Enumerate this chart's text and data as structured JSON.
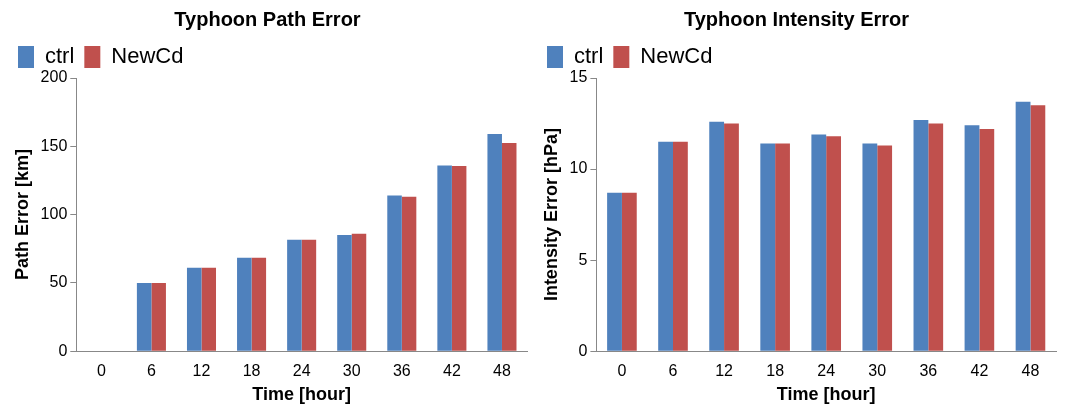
{
  "chart_data": [
    {
      "type": "bar",
      "title": "Typhoon Path Error",
      "xlabel": "Time [hour]",
      "ylabel": "Path Error [km]",
      "categories": [
        "0",
        "6",
        "12",
        "18",
        "24",
        "30",
        "36",
        "42",
        "48"
      ],
      "series": [
        {
          "name": "ctrl",
          "color": "#4f81bd",
          "values": [
            0,
            50,
            61,
            68.5,
            81.5,
            85,
            114,
            136,
            159
          ]
        },
        {
          "name": "NewCd",
          "color": "#c0504d",
          "values": [
            0,
            50,
            61,
            68.5,
            81.5,
            86,
            113,
            135.5,
            152.5
          ]
        }
      ],
      "ylim": [
        0,
        200
      ],
      "yticks": [
        0,
        50,
        100,
        150,
        200
      ],
      "legend": "top left"
    },
    {
      "type": "bar",
      "title": "Typhoon Intensity Error",
      "xlabel": "Time [hour]",
      "ylabel": "Intensity Error [hPa]",
      "categories": [
        "0",
        "6",
        "12",
        "18",
        "24",
        "30",
        "36",
        "42",
        "48"
      ],
      "series": [
        {
          "name": "ctrl",
          "color": "#4f81bd",
          "values": [
            8.7,
            11.5,
            12.6,
            11.4,
            11.9,
            11.4,
            12.7,
            12.4,
            13.7
          ]
        },
        {
          "name": "NewCd",
          "color": "#c0504d",
          "values": [
            8.7,
            11.5,
            12.5,
            11.4,
            11.8,
            11.3,
            12.5,
            12.2,
            13.5
          ]
        }
      ],
      "ylim": [
        0,
        15
      ],
      "yticks": [
        0,
        5,
        10,
        15
      ],
      "legend": "top left"
    }
  ]
}
